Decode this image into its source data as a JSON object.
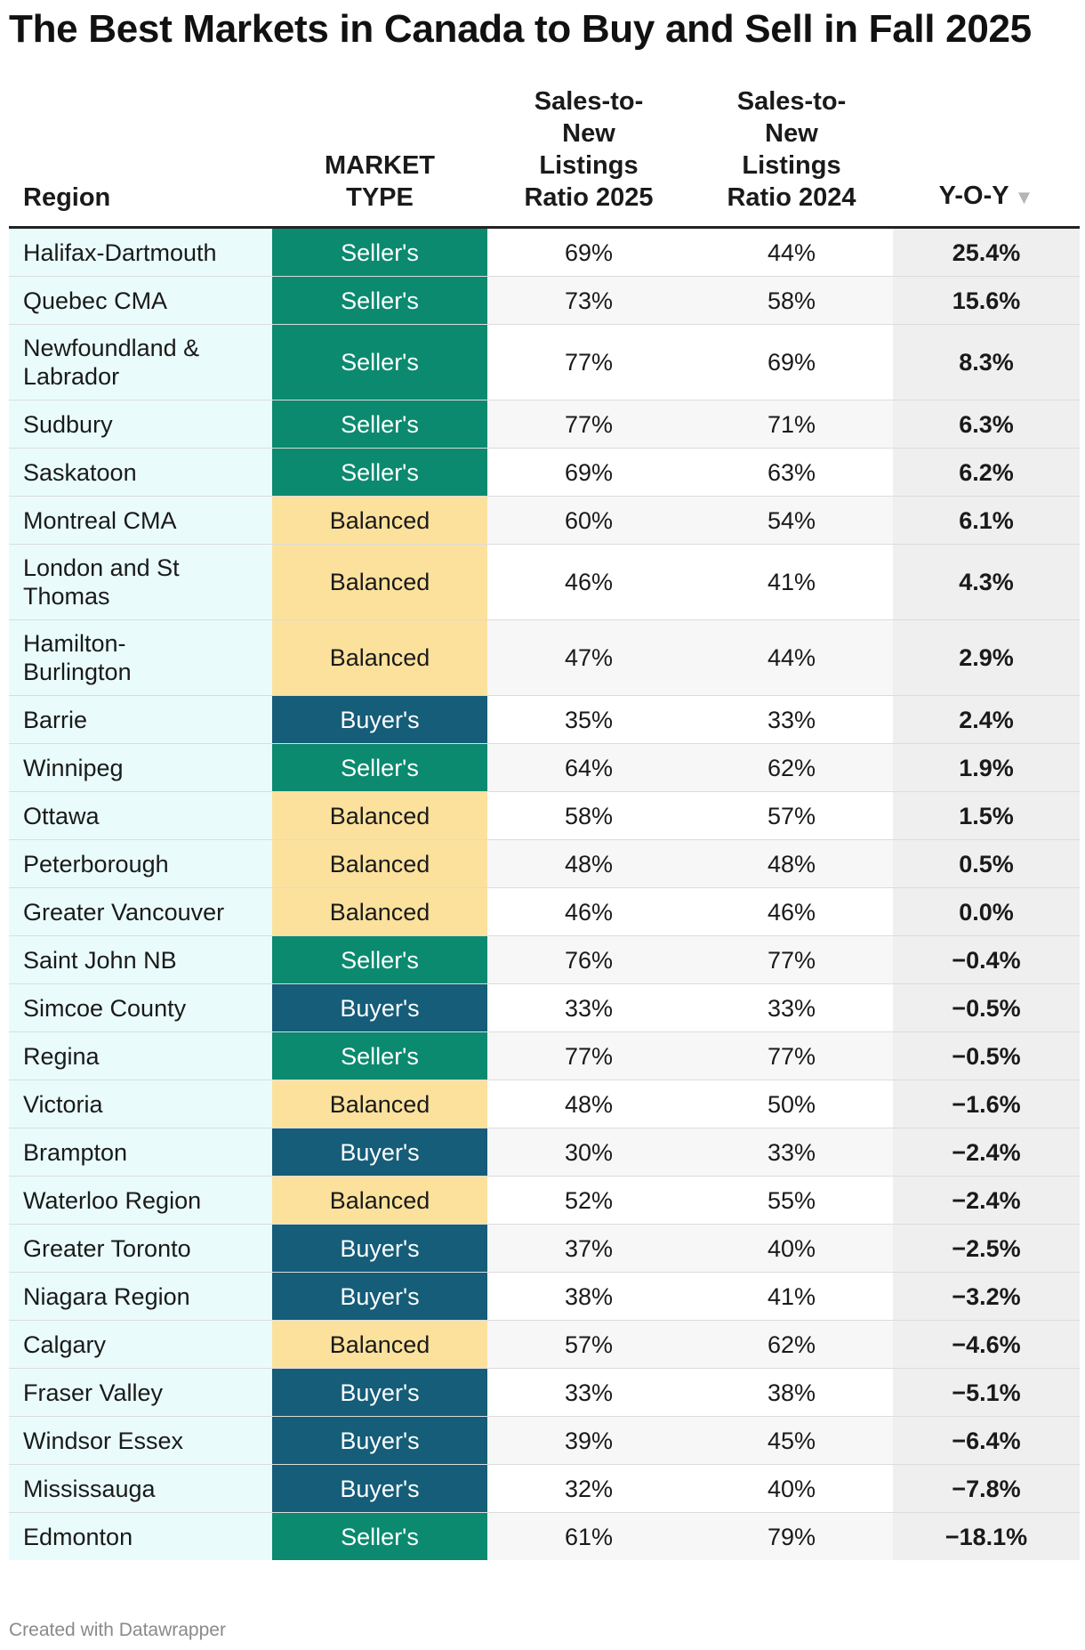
{
  "title": "The Best Markets in Canada to Buy and Sell in Fall 2025",
  "footer": "Created with Datawrapper",
  "colors": {
    "sellers": "#0b8a6f",
    "balanced": "#fbe19c",
    "buyers": "#155d78",
    "region_bg": "#e9fcfb",
    "yoy_bg": "#efefef"
  },
  "chart_data": {
    "type": "table",
    "columns": [
      "Region",
      "MARKET TYPE",
      "Sales-to-New Listings Ratio 2025",
      "Sales-to-New Listings Ratio 2024",
      "Y-O-Y"
    ],
    "sort": {
      "column": "Y-O-Y",
      "direction": "descending",
      "icon": "sort-down-icon"
    },
    "rows": [
      {
        "region": "Halifax-Dartmouth",
        "type": "Seller's",
        "r2025": "69%",
        "r2024": "44%",
        "yoy": "25.4%"
      },
      {
        "region": "Quebec CMA",
        "type": "Seller's",
        "r2025": "73%",
        "r2024": "58%",
        "yoy": "15.6%"
      },
      {
        "region": "Newfoundland & Labrador",
        "type": "Seller's",
        "r2025": "77%",
        "r2024": "69%",
        "yoy": "8.3%"
      },
      {
        "region": "Sudbury",
        "type": "Seller's",
        "r2025": "77%",
        "r2024": "71%",
        "yoy": "6.3%"
      },
      {
        "region": "Saskatoon",
        "type": "Seller's",
        "r2025": "69%",
        "r2024": "63%",
        "yoy": "6.2%"
      },
      {
        "region": "Montreal CMA",
        "type": "Balanced",
        "r2025": "60%",
        "r2024": "54%",
        "yoy": "6.1%"
      },
      {
        "region": "London and St Thomas",
        "type": "Balanced",
        "r2025": "46%",
        "r2024": "41%",
        "yoy": "4.3%"
      },
      {
        "region": "Hamilton-Burlington",
        "type": "Balanced",
        "r2025": "47%",
        "r2024": "44%",
        "yoy": "2.9%"
      },
      {
        "region": "Barrie",
        "type": "Buyer's",
        "r2025": "35%",
        "r2024": "33%",
        "yoy": "2.4%"
      },
      {
        "region": "Winnipeg",
        "type": "Seller's",
        "r2025": "64%",
        "r2024": "62%",
        "yoy": "1.9%"
      },
      {
        "region": "Ottawa",
        "type": "Balanced",
        "r2025": "58%",
        "r2024": "57%",
        "yoy": "1.5%"
      },
      {
        "region": "Peterborough",
        "type": "Balanced",
        "r2025": "48%",
        "r2024": "48%",
        "yoy": "0.5%"
      },
      {
        "region": "Greater Vancouver",
        "type": "Balanced",
        "r2025": "46%",
        "r2024": "46%",
        "yoy": "0.0%"
      },
      {
        "region": "Saint John NB",
        "type": "Seller's",
        "r2025": "76%",
        "r2024": "77%",
        "yoy": "−0.4%"
      },
      {
        "region": "Simcoe County",
        "type": "Buyer's",
        "r2025": "33%",
        "r2024": "33%",
        "yoy": "−0.5%"
      },
      {
        "region": "Regina",
        "type": "Seller's",
        "r2025": "77%",
        "r2024": "77%",
        "yoy": "−0.5%"
      },
      {
        "region": "Victoria",
        "type": "Balanced",
        "r2025": "48%",
        "r2024": "50%",
        "yoy": "−1.6%"
      },
      {
        "region": "Brampton",
        "type": "Buyer's",
        "r2025": "30%",
        "r2024": "33%",
        "yoy": "−2.4%"
      },
      {
        "region": "Waterloo Region",
        "type": "Balanced",
        "r2025": "52%",
        "r2024": "55%",
        "yoy": "−2.4%"
      },
      {
        "region": "Greater Toronto",
        "type": "Buyer's",
        "r2025": "37%",
        "r2024": "40%",
        "yoy": "−2.5%"
      },
      {
        "region": "Niagara Region",
        "type": "Buyer's",
        "r2025": "38%",
        "r2024": "41%",
        "yoy": "−3.2%"
      },
      {
        "region": "Calgary",
        "type": "Balanced",
        "r2025": "57%",
        "r2024": "62%",
        "yoy": "−4.6%"
      },
      {
        "region": "Fraser Valley",
        "type": "Buyer's",
        "r2025": "33%",
        "r2024": "38%",
        "yoy": "−5.1%"
      },
      {
        "region": "Windsor Essex",
        "type": "Buyer's",
        "r2025": "39%",
        "r2024": "45%",
        "yoy": "−6.4%"
      },
      {
        "region": "Mississauga",
        "type": "Buyer's",
        "r2025": "32%",
        "r2024": "40%",
        "yoy": "−7.8%"
      },
      {
        "region": "Edmonton",
        "type": "Seller's",
        "r2025": "61%",
        "r2024": "79%",
        "yoy": "−18.1%"
      }
    ]
  }
}
